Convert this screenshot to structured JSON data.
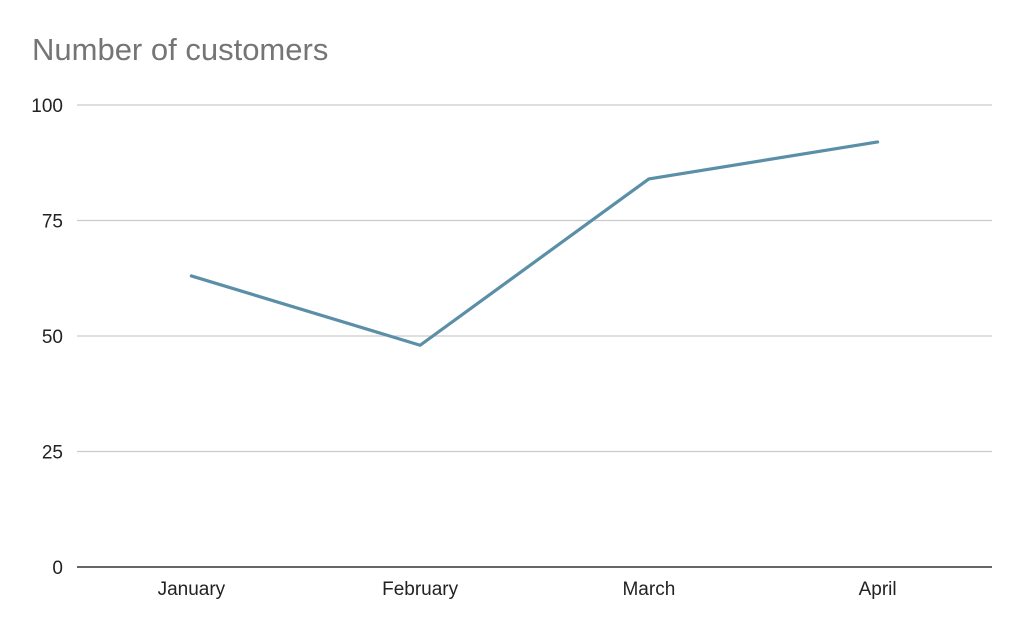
{
  "chart_data": {
    "type": "line",
    "title": "Number of customers",
    "xlabel": "",
    "ylabel": "",
    "categories": [
      "January",
      "February",
      "March",
      "April"
    ],
    "series": [
      {
        "name": "Number of customers",
        "values": [
          63,
          48,
          84,
          92
        ],
        "color": "#5b8fa8"
      }
    ],
    "ylim": [
      0,
      100
    ],
    "yticks": [
      0,
      25,
      50,
      75,
      100
    ],
    "ytick_labels": [
      "0",
      "25",
      "50",
      "75",
      "100"
    ],
    "grid": true,
    "legend": "none"
  },
  "colors": {
    "line": "#5b8fa8",
    "grid": "#cccccc",
    "axis": "#333333",
    "title": "#757575"
  }
}
